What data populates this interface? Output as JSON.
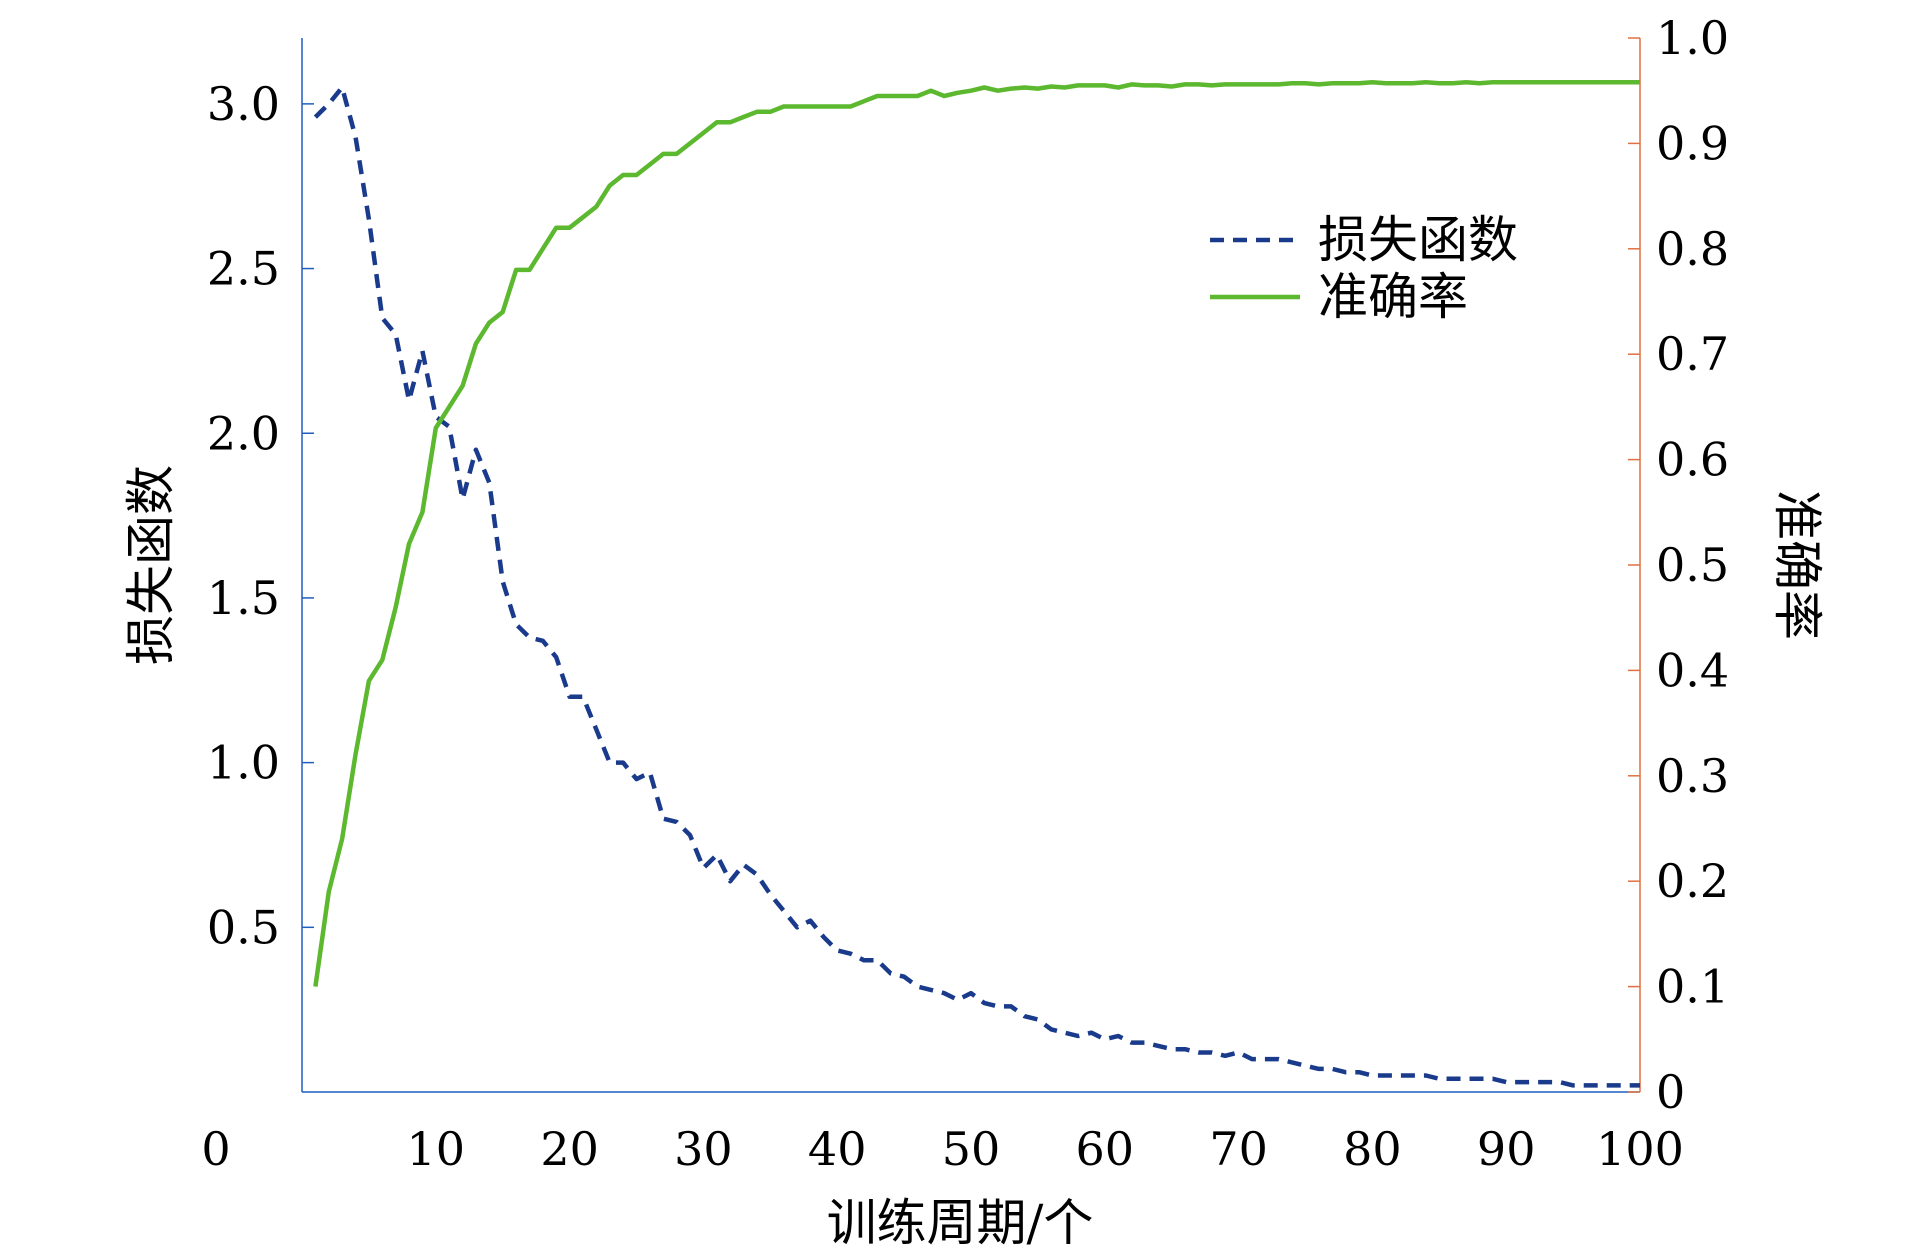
{
  "chart_data": {
    "type": "line",
    "xlabel": "训练周期/个",
    "ylabel_left": "损失函数",
    "ylabel_right": "准确率",
    "xlim": [
      0,
      100
    ],
    "ylim_left": [
      0,
      3.2
    ],
    "ylim_right": [
      0,
      1.0
    ],
    "x_ticks": [
      0,
      10,
      20,
      30,
      40,
      50,
      60,
      70,
      80,
      90,
      100
    ],
    "y_left_ticks": [
      0.5,
      1.0,
      1.5,
      2.0,
      2.5,
      3.0
    ],
    "y_right_ticks": [
      0,
      0.1,
      0.2,
      0.3,
      0.4,
      0.5,
      0.6,
      0.7,
      0.8,
      0.9,
      1.0
    ],
    "x_tick_labels": [
      "0",
      "10",
      "20",
      "30",
      "40",
      "50",
      "60",
      "70",
      "80",
      "90",
      "100"
    ],
    "y_left_tick_labels": [
      "0.5",
      "1.0",
      "1.5",
      "2.0",
      "2.5",
      "3.0"
    ],
    "y_right_tick_labels": [
      "0",
      "0.1",
      "0.2",
      "0.3",
      "0.4",
      "0.5",
      "0.6",
      "0.7",
      "0.8",
      "0.9",
      "1.0"
    ],
    "grid": false,
    "legend_position": "top-right",
    "colors": {
      "left_axis": "#1f5fbf",
      "right_axis": "#e07040",
      "loss": "#1a3a8c",
      "accuracy": "#5cb82e"
    },
    "series": [
      {
        "name": "损失函数",
        "axis": "left",
        "style": "dashed",
        "x": [
          1,
          2,
          3,
          4,
          5,
          6,
          7,
          8,
          9,
          10,
          11,
          12,
          13,
          14,
          15,
          16,
          17,
          18,
          19,
          20,
          21,
          22,
          23,
          24,
          25,
          26,
          27,
          28,
          29,
          30,
          31,
          32,
          33,
          34,
          35,
          36,
          37,
          38,
          39,
          40,
          41,
          42,
          43,
          44,
          45,
          46,
          47,
          48,
          49,
          50,
          51,
          52,
          53,
          54,
          55,
          56,
          57,
          58,
          59,
          60,
          61,
          62,
          63,
          64,
          65,
          66,
          67,
          68,
          69,
          70,
          71,
          72,
          73,
          74,
          75,
          76,
          77,
          78,
          79,
          80,
          81,
          82,
          83,
          84,
          85,
          86,
          87,
          88,
          89,
          90,
          91,
          92,
          93,
          94,
          95,
          96,
          97,
          98,
          99,
          100
        ],
        "values": [
          2.96,
          3.0,
          3.05,
          2.9,
          2.65,
          2.35,
          2.3,
          2.1,
          2.25,
          2.05,
          2.02,
          1.8,
          1.95,
          1.85,
          1.55,
          1.42,
          1.38,
          1.37,
          1.32,
          1.2,
          1.2,
          1.1,
          1.0,
          1.0,
          0.95,
          0.97,
          0.83,
          0.82,
          0.78,
          0.68,
          0.72,
          0.64,
          0.69,
          0.66,
          0.6,
          0.55,
          0.5,
          0.52,
          0.47,
          0.43,
          0.42,
          0.4,
          0.4,
          0.36,
          0.35,
          0.32,
          0.31,
          0.3,
          0.28,
          0.3,
          0.27,
          0.26,
          0.26,
          0.23,
          0.22,
          0.19,
          0.18,
          0.17,
          0.18,
          0.16,
          0.17,
          0.15,
          0.15,
          0.14,
          0.13,
          0.13,
          0.12,
          0.12,
          0.11,
          0.12,
          0.1,
          0.1,
          0.1,
          0.09,
          0.08,
          0.07,
          0.07,
          0.06,
          0.06,
          0.05,
          0.05,
          0.05,
          0.05,
          0.05,
          0.04,
          0.04,
          0.04,
          0.04,
          0.04,
          0.03,
          0.03,
          0.03,
          0.03,
          0.03,
          0.02,
          0.02,
          0.02,
          0.02,
          0.02,
          0.02
        ]
      },
      {
        "name": "准确率",
        "axis": "right",
        "style": "solid",
        "x": [
          1,
          2,
          3,
          4,
          5,
          6,
          7,
          8,
          9,
          10,
          11,
          12,
          13,
          14,
          15,
          16,
          17,
          18,
          19,
          20,
          21,
          22,
          23,
          24,
          25,
          26,
          27,
          28,
          29,
          30,
          31,
          32,
          33,
          34,
          35,
          36,
          37,
          38,
          39,
          40,
          41,
          42,
          43,
          44,
          45,
          46,
          47,
          48,
          49,
          50,
          51,
          52,
          53,
          54,
          55,
          56,
          57,
          58,
          59,
          60,
          61,
          62,
          63,
          64,
          65,
          66,
          67,
          68,
          69,
          70,
          71,
          72,
          73,
          74,
          75,
          76,
          77,
          78,
          79,
          80,
          81,
          82,
          83,
          84,
          85,
          86,
          87,
          88,
          89,
          90,
          91,
          92,
          93,
          94,
          95,
          96,
          97,
          98,
          99,
          100
        ],
        "values": [
          0.1,
          0.19,
          0.24,
          0.32,
          0.39,
          0.41,
          0.46,
          0.52,
          0.55,
          0.63,
          0.65,
          0.67,
          0.71,
          0.73,
          0.74,
          0.78,
          0.78,
          0.8,
          0.82,
          0.82,
          0.83,
          0.84,
          0.86,
          0.87,
          0.87,
          0.88,
          0.89,
          0.89,
          0.9,
          0.91,
          0.92,
          0.92,
          0.925,
          0.93,
          0.93,
          0.935,
          0.935,
          0.935,
          0.935,
          0.935,
          0.935,
          0.94,
          0.945,
          0.945,
          0.945,
          0.945,
          0.95,
          0.945,
          0.948,
          0.95,
          0.953,
          0.95,
          0.952,
          0.953,
          0.952,
          0.954,
          0.953,
          0.955,
          0.955,
          0.955,
          0.953,
          0.956,
          0.955,
          0.955,
          0.954,
          0.956,
          0.956,
          0.955,
          0.956,
          0.956,
          0.956,
          0.956,
          0.956,
          0.957,
          0.957,
          0.956,
          0.957,
          0.957,
          0.957,
          0.958,
          0.957,
          0.957,
          0.957,
          0.958,
          0.957,
          0.957,
          0.958,
          0.957,
          0.958,
          0.958,
          0.958,
          0.958,
          0.958,
          0.958,
          0.958,
          0.958,
          0.958,
          0.958,
          0.958,
          0.958
        ]
      }
    ]
  }
}
